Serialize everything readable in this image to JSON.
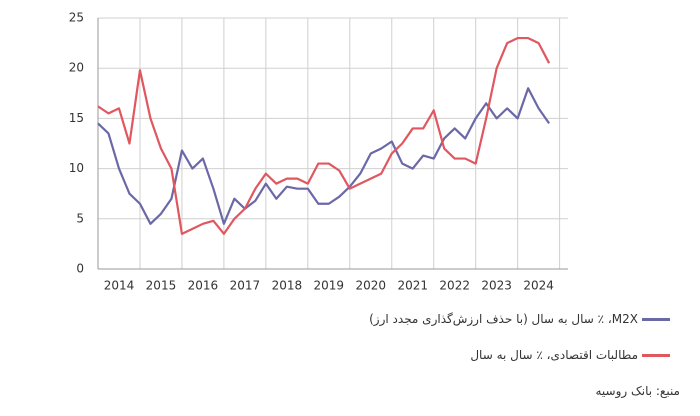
{
  "chart_data": {
    "type": "line",
    "x": [
      2014,
      2014.25,
      2014.5,
      2014.75,
      2015,
      2015.25,
      2015.5,
      2015.75,
      2016,
      2016.25,
      2016.5,
      2016.75,
      2017,
      2017.25,
      2017.5,
      2017.75,
      2018,
      2018.25,
      2018.5,
      2018.75,
      2019,
      2019.25,
      2019.5,
      2019.75,
      2020,
      2020.25,
      2020.5,
      2020.75,
      2021,
      2021.25,
      2021.5,
      2021.75,
      2022,
      2022.25,
      2022.5,
      2022.75,
      2023,
      2023.25,
      2023.5,
      2023.75,
      2024,
      2024.25,
      2024.5,
      2024.75
    ],
    "series": [
      {
        "name": "M2X، ٪ سال به سال (با حذف ارزش‌گذاری مجدد ارز)",
        "color": "#6b68a8",
        "values": [
          14.5,
          13.5,
          10,
          7.5,
          6.5,
          4.5,
          5.5,
          7,
          11.8,
          10,
          11,
          8,
          4.5,
          7,
          6,
          6.8,
          8.5,
          7,
          8.2,
          8,
          8,
          6.5,
          6.5,
          7.2,
          8.2,
          9.5,
          11.5,
          12,
          12.7,
          10.5,
          10,
          11.3,
          11,
          13,
          14,
          13,
          15,
          16.5,
          15,
          16,
          15,
          18,
          16,
          14.5
        ]
      },
      {
        "name": "مطالبات اقتصادی، ٪ سال به سال",
        "color": "#e0575f",
        "values": [
          16.2,
          15.5,
          16,
          12.5,
          19.8,
          15,
          12,
          10,
          3.5,
          4,
          4.5,
          4.8,
          3.5,
          5,
          6,
          8,
          9.5,
          8.5,
          9,
          9,
          8.5,
          10.5,
          10.5,
          9.8,
          8,
          8.5,
          9,
          9.5,
          11.5,
          12.5,
          14,
          14,
          15.8,
          12,
          11,
          11,
          10.5,
          15,
          20,
          22.5,
          23,
          23,
          22.5,
          20.5
        ]
      }
    ],
    "xlim": [
      2014,
      2025.2
    ],
    "xticks": [
      {
        "value": 2014.5,
        "label": "2014"
      },
      {
        "value": 2015.5,
        "label": "2015"
      },
      {
        "value": 2016.5,
        "label": "2016"
      },
      {
        "value": 2017.5,
        "label": "2017"
      },
      {
        "value": 2018.5,
        "label": "2018"
      },
      {
        "value": 2019.5,
        "label": "2019"
      },
      {
        "value": 2020.5,
        "label": "2020"
      },
      {
        "value": 2021.5,
        "label": "2021"
      },
      {
        "value": 2022.5,
        "label": "2022"
      },
      {
        "value": 2023.5,
        "label": "2023"
      },
      {
        "value": 2024.5,
        "label": "2024"
      }
    ],
    "x_grid": [
      2014,
      2015,
      2016,
      2017,
      2018,
      2019,
      2020,
      2021,
      2022,
      2023,
      2024,
      2025
    ],
    "ylim": [
      0,
      25
    ],
    "yticks": [
      0,
      5,
      10,
      15,
      20,
      25
    ],
    "grid": true,
    "source": "منبع: بانک روسیه"
  }
}
